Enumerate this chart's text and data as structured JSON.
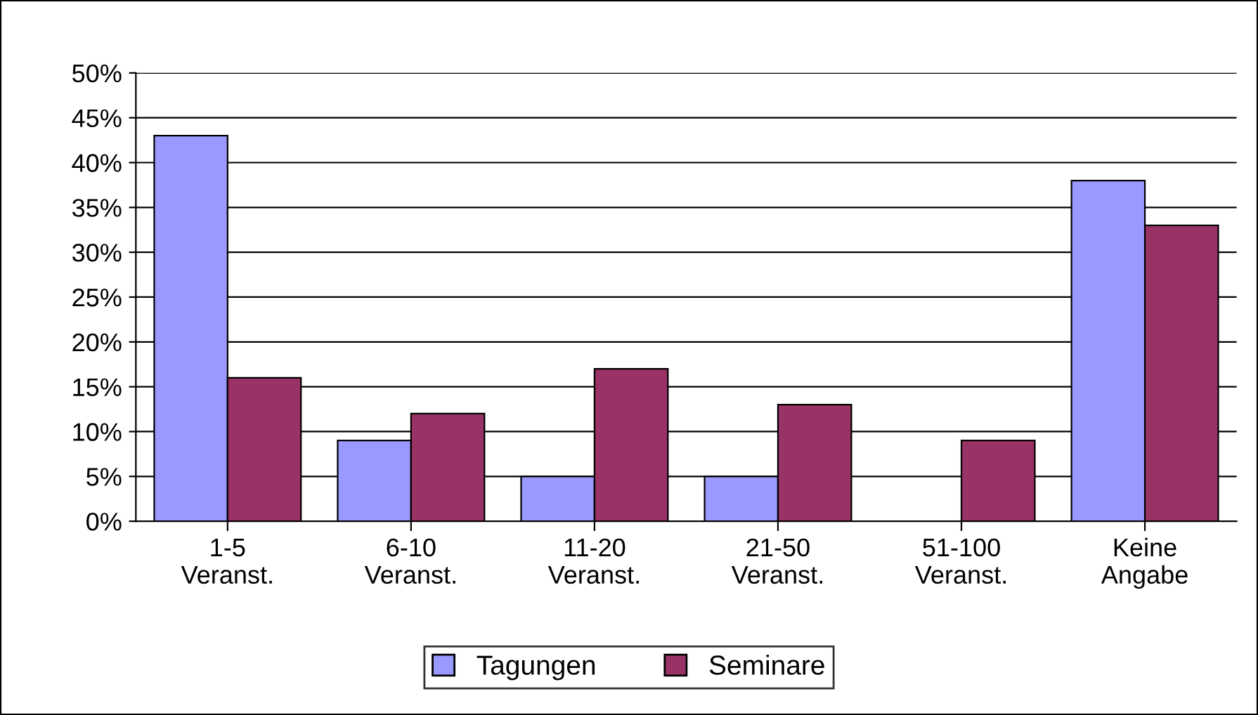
{
  "chart_data": {
    "type": "bar",
    "categories": [
      "1-5\nVeranst.",
      "6-10\nVeranst.",
      "11-20\nVeranst.",
      "21-50\nVeranst.",
      "51-100\nVeranst.",
      "Keine\nAngabe"
    ],
    "series": [
      {
        "name": "Tagungen",
        "color": "#9999ff",
        "values": [
          43,
          9,
          5,
          5,
          null,
          38
        ]
      },
      {
        "name": "Seminare",
        "color": "#993366",
        "values": [
          16,
          12,
          17,
          13,
          9,
          33
        ]
      }
    ],
    "ylim": [
      0,
      50
    ],
    "yticks": [
      {
        "value": 0,
        "label": "0%"
      },
      {
        "value": 5,
        "label": "5%"
      },
      {
        "value": 10,
        "label": "10%"
      },
      {
        "value": 15,
        "label": "15%"
      },
      {
        "value": 20,
        "label": "20%"
      },
      {
        "value": 25,
        "label": "25%"
      },
      {
        "value": 30,
        "label": "30%"
      },
      {
        "value": 35,
        "label": "35%"
      },
      {
        "value": 40,
        "label": "40%"
      },
      {
        "value": 45,
        "label": "45%"
      },
      {
        "value": 50,
        "label": "50%"
      }
    ],
    "grid": "y",
    "legend": "bottom"
  }
}
